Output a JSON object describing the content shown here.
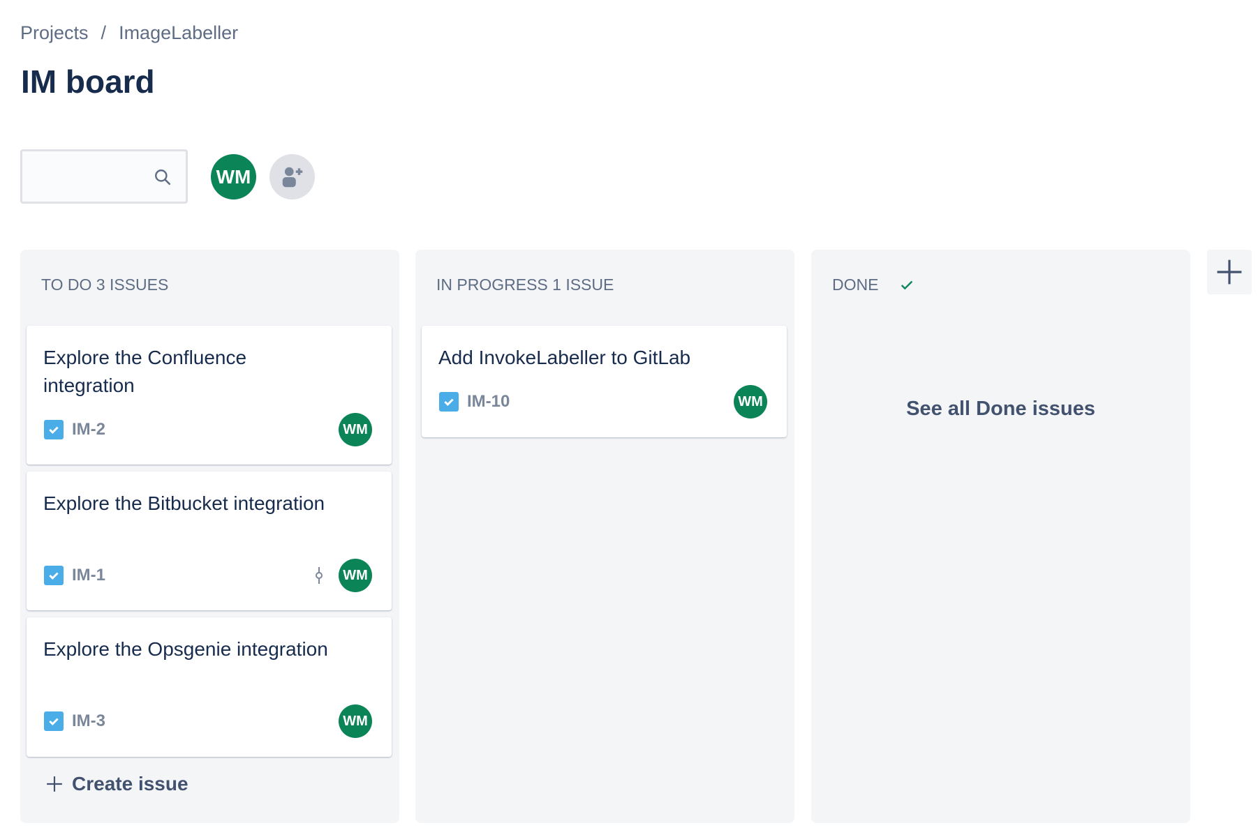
{
  "breadcrumb": {
    "items": [
      "Projects",
      "ImageLabeller"
    ],
    "separator": "/"
  },
  "page_title": "IM board",
  "search": {
    "value": "",
    "placeholder": ""
  },
  "members": [
    {
      "initials": "WM",
      "color": "#0b8457"
    }
  ],
  "columns": [
    {
      "title": "TO DO 3 ISSUES",
      "cards": [
        {
          "title": "Explore the Confluence integration",
          "key": "IM-2",
          "assignee": "WM"
        },
        {
          "title": "Explore the Bitbucket integration",
          "key": "IM-1",
          "assignee": "WM",
          "icon": "commit-icon"
        },
        {
          "title": "Explore the Opsgenie integration",
          "key": "IM-3",
          "assignee": "WM"
        }
      ],
      "create_label": "Create issue"
    },
    {
      "title": "IN PROGRESS 1 ISSUE",
      "cards": [
        {
          "title": "Add InvokeLabeller to GitLab",
          "key": "IM-10",
          "assignee": "WM"
        }
      ]
    },
    {
      "title": "DONE",
      "done_check_color": "#0b8457",
      "link": "See all Done issues"
    }
  ],
  "colors": {
    "task": "#4bade8",
    "avatar": "#0b8457"
  }
}
